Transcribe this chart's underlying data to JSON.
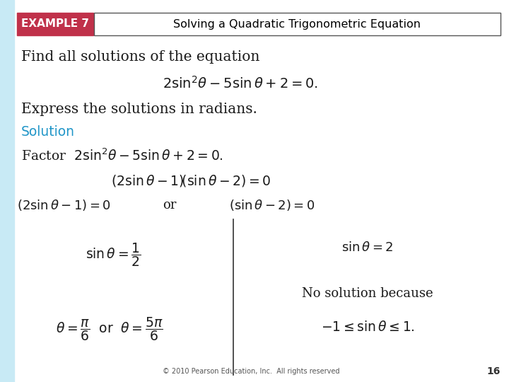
{
  "bg_color": "#ffffff",
  "left_bar_color": "#c8eaf5",
  "header_box_color": "#c0314a",
  "header_box_text": "EXAMPLE 7",
  "header_title_text": "Solving a Quadratic Trigonometric Equation",
  "header_box_text_color": "#ffffff",
  "header_title_color": "#000000",
  "footer_text": "© 2010 Pearson Education, Inc.  All rights reserved",
  "footer_page": "16",
  "solution_color": "#2196c8",
  "main_text_color": "#1a1a1a"
}
